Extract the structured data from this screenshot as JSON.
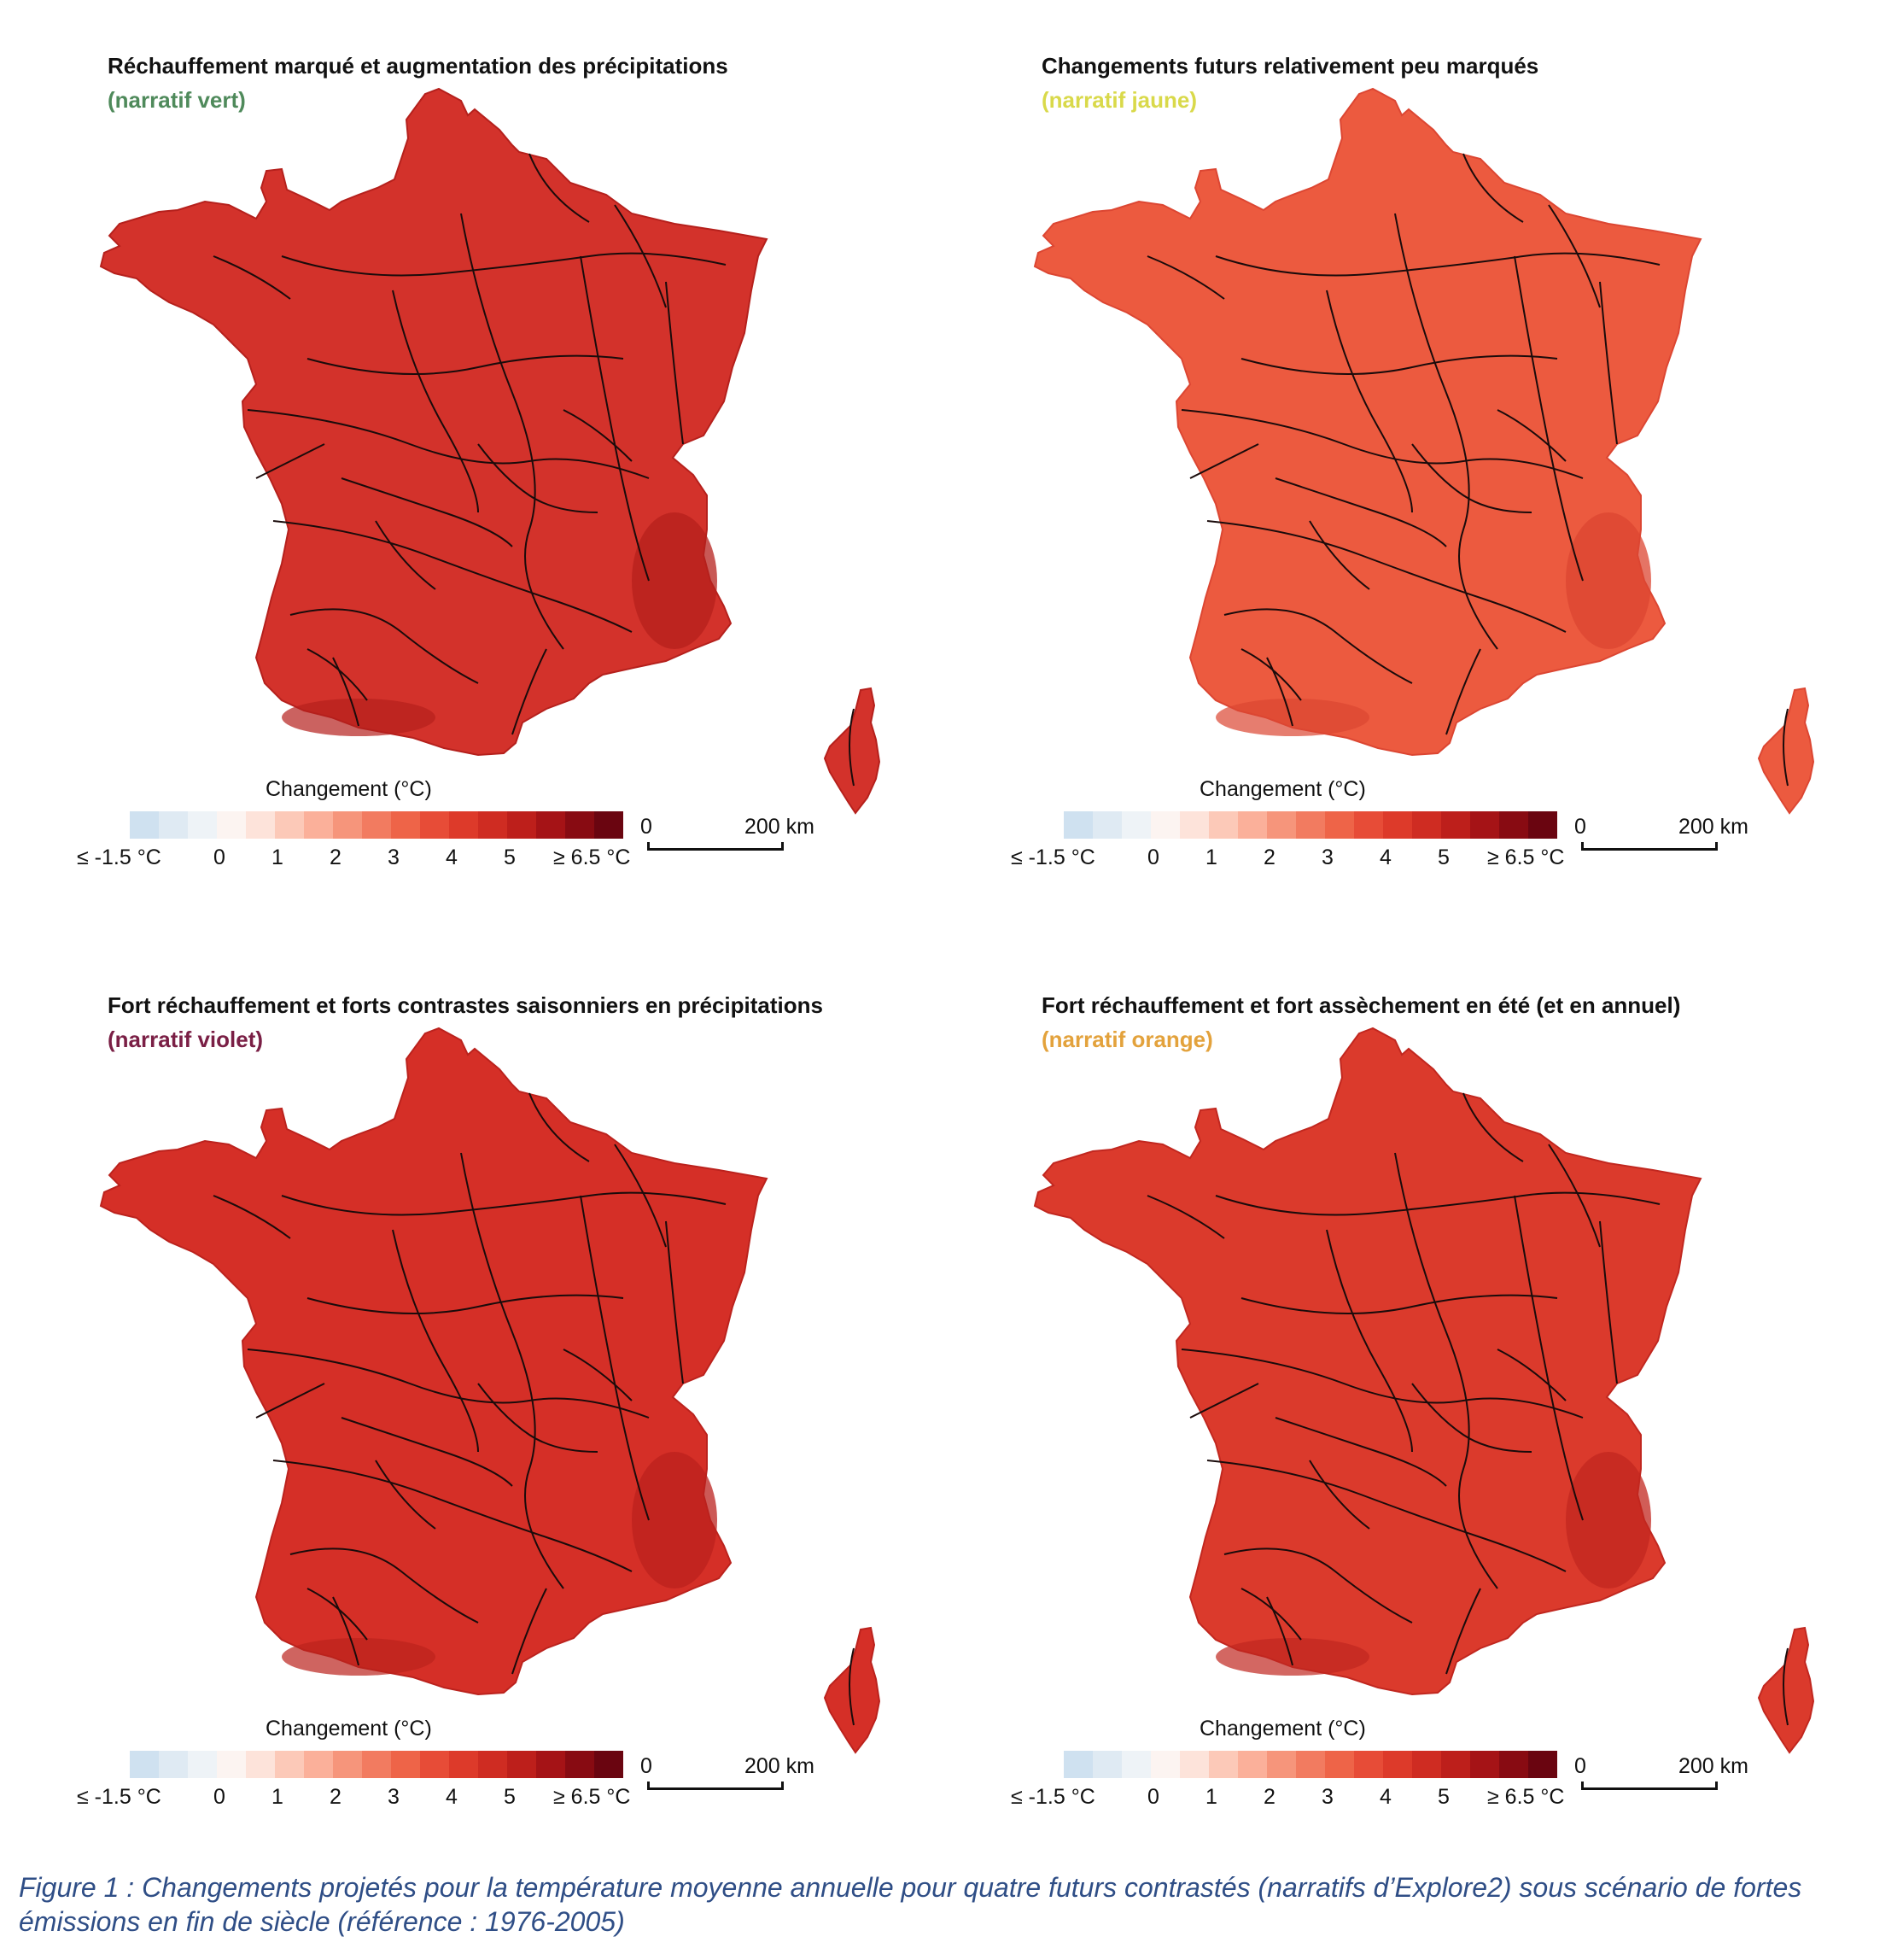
{
  "panels": [
    {
      "title": "Réchauffement marqué et augmentation des précipitations",
      "subtitle": "(narratif vert)",
      "subtitle_color": "#4f8a5b",
      "fill_color": "#d3322b",
      "accent_color": "#b5201c",
      "legend_title": "Changement (°C)",
      "legend_ticks": [
        "≤ -1.5 °C",
        "0",
        "1",
        "2",
        "3",
        "4",
        "5",
        "≥ 6.5 °C"
      ],
      "scale_zero": "0",
      "scale_label": "200 km"
    },
    {
      "title": "Changements futurs relativement peu marqués",
      "subtitle": "(narratif jaune)",
      "subtitle_color": "#d9d94a",
      "fill_color": "#ec5a3f",
      "accent_color": "#dc4632",
      "legend_title": "Changement (°C)",
      "legend_ticks": [
        "≤ -1.5 °C",
        "0",
        "1",
        "2",
        "3",
        "4",
        "5",
        "≥ 6.5 °C"
      ],
      "scale_zero": "0",
      "scale_label": "200 km"
    },
    {
      "title": "Fort réchauffement et forts contrastes saisonniers en précipitations",
      "subtitle": "(narratif violet)",
      "subtitle_color": "#7a1f45",
      "fill_color": "#d52f27",
      "accent_color": "#bb221d",
      "legend_title": "Changement (°C)",
      "legend_ticks": [
        "≤ -1.5 °C",
        "0",
        "1",
        "2",
        "3",
        "4",
        "5",
        "≥ 6.5 °C"
      ],
      "scale_zero": "0",
      "scale_label": "200 km"
    },
    {
      "title": "Fort réchauffement et fort assèchement en été (et en annuel)",
      "subtitle": "(narratif orange)",
      "subtitle_color": "#e3a23c",
      "fill_color": "#db3a2c",
      "accent_color": "#c1271f",
      "legend_title": "Changement (°C)",
      "legend_ticks": [
        "≤ -1.5 °C",
        "0",
        "1",
        "2",
        "3",
        "4",
        "5",
        "≥ 6.5 °C"
      ],
      "scale_zero": "0",
      "scale_label": "200 km"
    }
  ],
  "legend_colors": [
    "#cfe1f0",
    "#dfeaf3",
    "#eef3f7",
    "#fcf4f1",
    "#fde3da",
    "#fcc9b8",
    "#fbb09a",
    "#f6957b",
    "#f27b60",
    "#ee6448",
    "#e74c37",
    "#dd3a2a",
    "#cf2c22",
    "#bd1f1b",
    "#a51316",
    "#880b12",
    "#6a0510"
  ],
  "caption": "Figure 1 : Changements projetés pour la température moyenne annuelle pour quatre futurs contrastés (narratifs d’Explore2) sous scénario de fortes émissions en fin de siècle (référence : 1976-2005)"
}
